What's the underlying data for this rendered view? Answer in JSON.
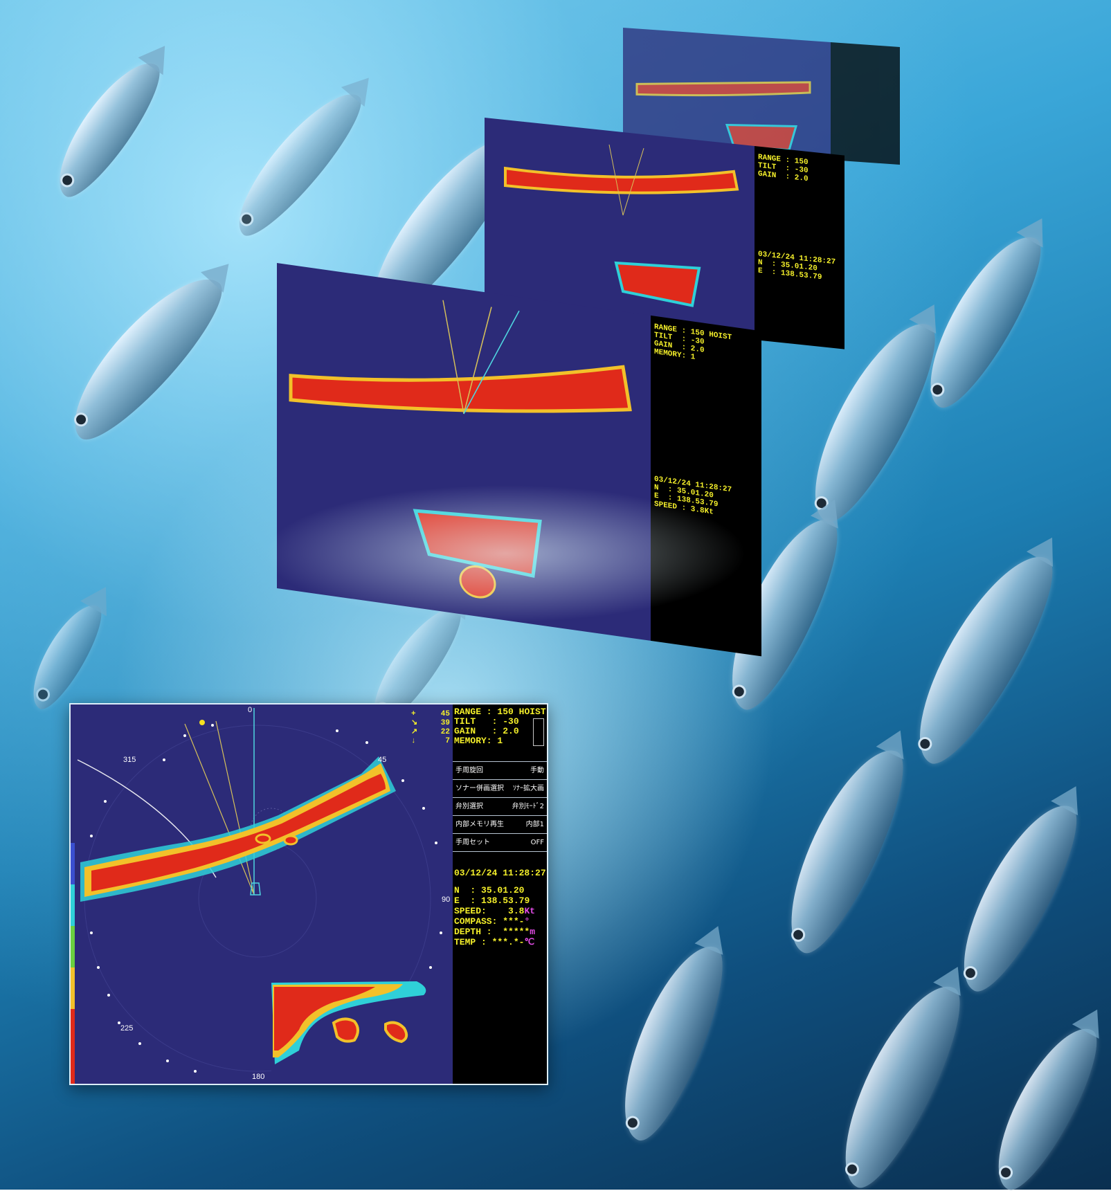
{
  "stats": {
    "range_label": "RANGE :",
    "range_value": "150",
    "hoist_label": "HOIST",
    "tilt_label": "TILT   :",
    "tilt_value": "-30",
    "gain_label": "GAIN   :",
    "gain_value": "2.0",
    "memory_label": "MEMORY:",
    "memory_value": "1"
  },
  "indicators": [
    {
      "symbol": "+",
      "value": "45"
    },
    {
      "symbol": "↘",
      "value": "39"
    },
    {
      "symbol": "↗",
      "value": "22"
    },
    {
      "symbol": "↓",
      "value": "7"
    }
  ],
  "menu": [
    {
      "label": "手周旋回",
      "value": "手動"
    },
    {
      "label": "ソナー併画選択",
      "value": "ｿﾅｰ拡大画"
    },
    {
      "label": "弁別選択",
      "value": "弁別ﾓｰﾄﾞ2"
    },
    {
      "label": "内部メモリ再生",
      "value": "内部1"
    },
    {
      "label": "手周セット",
      "value": "OFF"
    }
  ],
  "nav": {
    "datetime": "03/12/24 11:28:27",
    "lat_label": "N  :",
    "lat_value": "35.01.20",
    "lon_label": "E  :",
    "lon_value": "138.53.79",
    "speed_label": "SPEED:",
    "speed_value": "3.8",
    "speed_unit": "Kt",
    "compass_label": "COMPASS:",
    "compass_value": "***-",
    "compass_unit": "°",
    "depth_label": "DEPTH :",
    "depth_value": "*****",
    "depth_unit": "m",
    "temp_label": "TEMP :",
    "temp_value": "***.*-",
    "temp_unit": "℃"
  },
  "bearings": {
    "b0": "0",
    "b45": "45",
    "b90": "90",
    "b180": "180",
    "b225": "225",
    "b315": "315"
  },
  "colors": {
    "sonar_bg": "#2c2b78",
    "echo_strong": "#e02a1a",
    "echo_mid": "#f2c12a",
    "echo_weak": "#2fd0d8",
    "info_text": "#f4ef2a",
    "unit_text": "#e24ce6"
  }
}
